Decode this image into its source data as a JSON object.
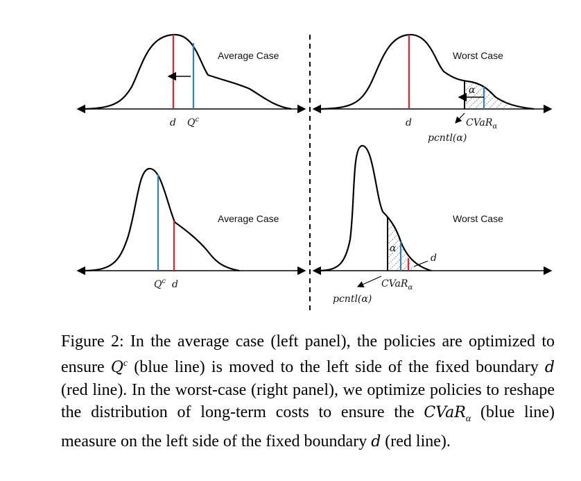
{
  "panels": {
    "top_left": {
      "title": "Average Case",
      "label_d": "d",
      "label_q": "Q",
      "label_q_sup": "c"
    },
    "top_right": {
      "title": "Worst Case",
      "label_d": "d",
      "label_alpha": "α",
      "label_cvar": "CVaR",
      "label_cvar_sub": "α",
      "label_pcntl": "pcntl(α)"
    },
    "bottom_left": {
      "title": "Average Case",
      "label_q": "Q",
      "label_q_sup": "c",
      "label_d": "d"
    },
    "bottom_right": {
      "title": "Worst Case",
      "label_d": "d",
      "label_alpha": "α",
      "label_cvar": "CVaR",
      "label_cvar_sub": "α",
      "label_pcntl": "pcntl(α)"
    }
  },
  "colors": {
    "boundary_d": "#e8202a",
    "measure_q": "#2b7fd4",
    "curve": "#000000"
  },
  "caption": {
    "part1": "Figure 2: In the average case (left panel), the policies are optimized to ensure ",
    "q": "Q",
    "q_sup": "c",
    "part2": " (blue line) is moved to the left side of the fixed boundary ",
    "d1": "d",
    "part3": " (red line). In the worst-case (right panel), we optimize policies to reshape the distribution of long-term costs to ensure the ",
    "cvar": "CVaR",
    "cvar_sub": "α",
    "part4": " (blue line) measure on the left side of the fixed boundary ",
    "d2": "d",
    "part5": " (red line)."
  }
}
